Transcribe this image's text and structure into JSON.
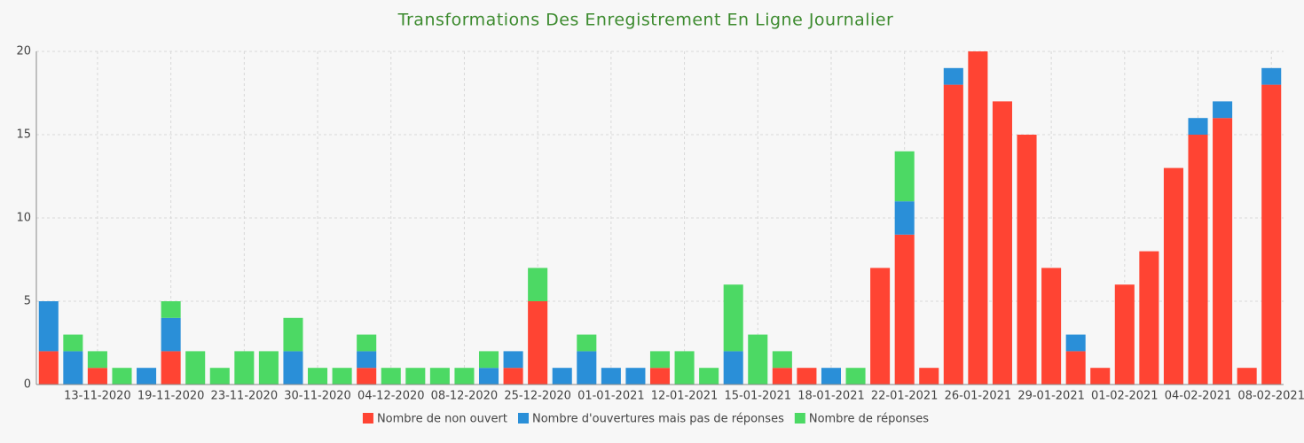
{
  "chart_data": {
    "type": "stacked_bar",
    "title": "Transformations Des Enregistrement En Ligne Journalier",
    "categories": [
      null,
      null,
      "13-11-2020",
      null,
      null,
      "19-11-2020",
      null,
      null,
      "23-11-2020",
      null,
      null,
      "30-11-2020",
      null,
      null,
      "04-12-2020",
      null,
      null,
      "08-12-2020",
      null,
      null,
      "25-12-2020",
      null,
      null,
      "01-01-2021",
      null,
      null,
      "12-01-2021",
      null,
      null,
      "15-01-2021",
      null,
      null,
      "18-01-2021",
      null,
      null,
      "22-01-2021",
      null,
      null,
      "26-01-2021",
      null,
      null,
      "29-01-2021",
      null,
      null,
      "01-02-2021",
      null,
      null,
      "04-02-2021",
      null,
      null,
      "08-02-2021"
    ],
    "series": [
      {
        "name": "Nombre de non ouvert",
        "color": "#ff4433",
        "values": [
          2,
          0,
          1,
          0,
          0,
          2,
          0,
          0,
          0,
          0,
          0,
          0,
          0,
          1,
          0,
          0,
          0,
          0,
          0,
          1,
          5,
          0,
          0,
          0,
          0,
          1,
          0,
          0,
          0,
          0,
          1,
          1,
          0,
          0,
          7,
          9,
          1,
          18,
          20,
          17,
          15,
          7,
          2,
          1,
          6,
          8,
          13,
          15,
          16,
          1,
          18
        ]
      },
      {
        "name": "Nombre d'ouvertures mais pas de réponses",
        "color": "#2a8fd8",
        "values": [
          3,
          2,
          0,
          0,
          1,
          2,
          0,
          0,
          0,
          0,
          2,
          0,
          0,
          1,
          0,
          0,
          0,
          0,
          1,
          1,
          0,
          1,
          2,
          1,
          1,
          0,
          0,
          0,
          2,
          0,
          0,
          0,
          1,
          0,
          0,
          2,
          0,
          1,
          0,
          0,
          0,
          0,
          1,
          0,
          0,
          0,
          0,
          1,
          1,
          0,
          1
        ]
      },
      {
        "name": "Nombre de réponses",
        "color": "#4cd964",
        "values": [
          0,
          1,
          1,
          1,
          0,
          1,
          2,
          1,
          2,
          2,
          2,
          1,
          1,
          1,
          1,
          1,
          1,
          1,
          1,
          0,
          2,
          0,
          1,
          0,
          0,
          1,
          2,
          1,
          4,
          3,
          1,
          0,
          0,
          1,
          0,
          3,
          0,
          0,
          0,
          0,
          0,
          0,
          0,
          0,
          0,
          0,
          0,
          0,
          0,
          0,
          0
        ]
      }
    ],
    "ylim": [
      0,
      20
    ],
    "yticks": [
      0,
      5,
      10,
      15,
      20
    ],
    "grid": true,
    "legend": "bottom"
  }
}
